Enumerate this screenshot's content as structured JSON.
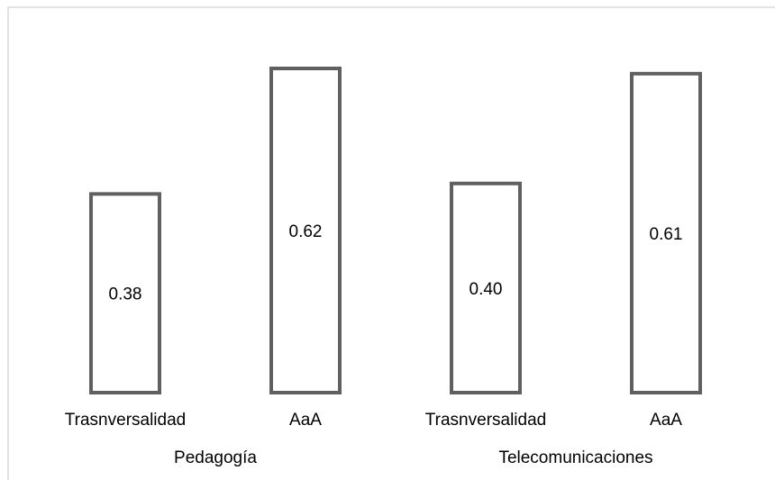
{
  "chart_data": {
    "type": "bar",
    "groups": [
      {
        "name": "Pedagogía",
        "categories": [
          "Trasnversalidad",
          "AaA"
        ],
        "values": [
          0.38,
          0.62
        ]
      },
      {
        "name": "Telecomunicaciones",
        "categories": [
          "Trasnversalidad",
          "AaA"
        ],
        "values": [
          0.4,
          0.61
        ]
      }
    ],
    "data_labels": [
      "0.38",
      "0.62",
      "0.40",
      "0.61"
    ],
    "title": "",
    "xlabel": "",
    "ylabel": "",
    "ylim": [
      0,
      0.7
    ],
    "grid": false,
    "legend": "none",
    "bar_fill": "#ffffff",
    "bar_stroke": "#606060"
  }
}
